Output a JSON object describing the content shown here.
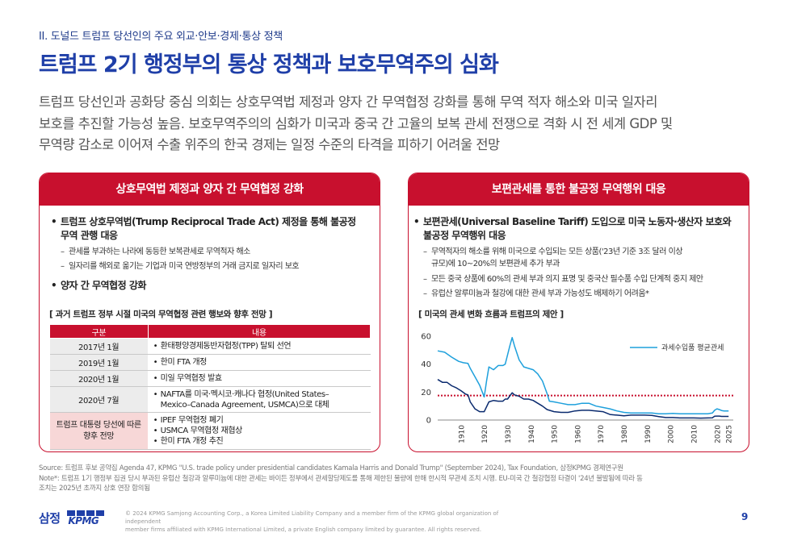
{
  "header": {
    "section": "II. 도널드 트럼프 당선인의 주요 외교·안보·경제·통상 정책",
    "title": "트럼프 2기 행정부의 통상 정책과 보호무역주의 심화"
  },
  "intro": {
    "lines": [
      "트럼프 당선인과 공화당 중심 의회는 상호무역법 제정과 양자 간 무역협정 강화를 통해 무역 적자 해소와 미국 일자리",
      "보호를 추진할 가능성 높음. 보호무역주의의 심화가 미국과 중국 간 고율의 보복 관세 전쟁으로 격화 시 전 세계 GDP 및",
      "무역량 감소로 이어져 수출 위주의 한국 경제는 일정 수준의 타격을 피하기 어려울 전망"
    ]
  },
  "left_panel": {
    "title": "상호무역법 제정과 양자 간 무역협정 강화",
    "bullet1": {
      "lines": [
        "트럼프 상호무역법(Trump Reciprocal Trade Act) 제정을 통해 불공정",
        "무역 관행 대응"
      ],
      "subs": [
        "관세를 부과하는 나라에 동등한 보복관세로 무역적자 해소",
        "일자리를 해외로 옮기는 기업과 미국 연방정부의 거래 금지로 일자리 보호"
      ]
    },
    "bullet2": "양자 간 무역협정 강화",
    "table_title": "[ 과거 트럼프 정부 시절 미국의 무역협정 관련 행보와 향후 전망 ]",
    "table_headers": [
      "구분",
      "내용"
    ],
    "rows": [
      {
        "year": "2017년 1월",
        "items": [
          "환태평양경제동반자협정(TPP) 탈퇴 선언"
        ]
      },
      {
        "year": "2019년 1월",
        "items": [
          "한미 FTA 개정"
        ]
      },
      {
        "year": "2020년 1월",
        "items": [
          "미일 무역협정 발효"
        ]
      },
      {
        "year": "2020년 7월",
        "items": [
          "NAFTA를 미국·멕시코·캐나다 협정(United States–",
          "Mexico–Canada Agreement, USMCA)으로 대체"
        ]
      }
    ],
    "future_row": {
      "year_lines": [
        "트럼프 대통령 당선에 따른",
        "향후 전망"
      ],
      "items": [
        "IPEF 무역협정 폐기",
        "USMCA 무역협정 재협상",
        "한미 FTA 개정 추진"
      ]
    }
  },
  "right_panel": {
    "title": "보편관세를 통한 불공정 무역행위 대응",
    "bullet1": {
      "lines": [
        "보편관세(Universal Baseline Tariff) 도입으로 미국 노동자·생산자 보호와",
        "불공정 무역행위 대응"
      ],
      "subs": [
        [
          "무역적자의 해소를 위해 미국으로 수입되는 모든 상품('23년 기준 3조 달러 이상",
          "규모)에 10~20%의 보편관세 추가 부과"
        ],
        [
          "모든 중국 상품에 60%의 관세 부과 의지 표명 및 중국산 필수품 수입 단계적 중지 제안"
        ],
        [
          "유럽산 알루미늄과 철강에 대한 관세 부과 가능성도 배제하기 어려움*"
        ]
      ]
    },
    "chart_title": "[ 미국의 관세 변화 흐름과 트럼프의 제안 ]"
  },
  "chart_data": {
    "type": "line",
    "title": "",
    "xlabel": "",
    "ylabel": "",
    "xlim": [
      1900,
      2027
    ],
    "ylim": [
      0,
      60
    ],
    "x_ticks": [
      1910,
      1920,
      1930,
      1940,
      1950,
      1960,
      1970,
      1980,
      1990,
      2000,
      2010,
      2020,
      2025
    ],
    "y_ticks": [
      0,
      20,
      40,
      60
    ],
    "legend": "top-right",
    "reference_line": {
      "y": 17.5,
      "color": "#c8102e",
      "style": "dotted"
    },
    "series": [
      {
        "name": "과세수입품 평균관세",
        "color": "#1ea0dc",
        "points": [
          [
            1900,
            49.5
          ],
          [
            1903,
            48.5
          ],
          [
            1906,
            45
          ],
          [
            1909,
            42
          ],
          [
            1911,
            41
          ],
          [
            1913,
            40.5
          ],
          [
            1914,
            37
          ],
          [
            1916,
            31
          ],
          [
            1918,
            25
          ],
          [
            1920,
            16.5
          ],
          [
            1921,
            28
          ],
          [
            1922,
            38
          ],
          [
            1924,
            36
          ],
          [
            1926,
            39
          ],
          [
            1928,
            39
          ],
          [
            1929,
            40
          ],
          [
            1931,
            53
          ],
          [
            1932,
            59
          ],
          [
            1933,
            53
          ],
          [
            1935,
            43
          ],
          [
            1937,
            38
          ],
          [
            1939,
            37
          ],
          [
            1941,
            36
          ],
          [
            1943,
            33
          ],
          [
            1945,
            28
          ],
          [
            1947,
            19
          ],
          [
            1948,
            13.5
          ],
          [
            1950,
            13
          ],
          [
            1953,
            12
          ],
          [
            1956,
            11
          ],
          [
            1959,
            11
          ],
          [
            1962,
            12
          ],
          [
            1965,
            12
          ],
          [
            1968,
            10
          ],
          [
            1971,
            9
          ],
          [
            1974,
            8
          ],
          [
            1977,
            6.5
          ],
          [
            1980,
            5.5
          ],
          [
            1983,
            5
          ],
          [
            1986,
            5
          ],
          [
            1989,
            5
          ],
          [
            1992,
            5
          ],
          [
            1995,
            4.5
          ],
          [
            1998,
            4.5
          ],
          [
            2001,
            4.8
          ],
          [
            2004,
            4.5
          ],
          [
            2007,
            4.5
          ],
          [
            2010,
            4.5
          ],
          [
            2013,
            4.5
          ],
          [
            2016,
            4.5
          ],
          [
            2018,
            5
          ],
          [
            2019,
            7
          ],
          [
            2020,
            8
          ],
          [
            2021,
            7.5
          ],
          [
            2022,
            6.8
          ],
          [
            2023,
            6.5
          ],
          [
            2025,
            6.5
          ]
        ]
      },
      {
        "name": "",
        "color": "#0a2a6e",
        "points": [
          [
            1900,
            29
          ],
          [
            1902,
            27
          ],
          [
            1904,
            27
          ],
          [
            1906,
            24.5
          ],
          [
            1908,
            23
          ],
          [
            1910,
            21
          ],
          [
            1912,
            18.5
          ],
          [
            1913,
            18
          ],
          [
            1914,
            13
          ],
          [
            1916,
            8
          ],
          [
            1918,
            6
          ],
          [
            1920,
            6
          ],
          [
            1922,
            13
          ],
          [
            1924,
            14
          ],
          [
            1926,
            13.5
          ],
          [
            1928,
            13.5
          ],
          [
            1929,
            15
          ],
          [
            1930,
            15
          ],
          [
            1932,
            19.5
          ],
          [
            1933,
            18
          ],
          [
            1935,
            17
          ],
          [
            1937,
            15
          ],
          [
            1939,
            15
          ],
          [
            1941,
            14
          ],
          [
            1943,
            12
          ],
          [
            1945,
            10
          ],
          [
            1947,
            7.5
          ],
          [
            1950,
            6
          ],
          [
            1953,
            5.5
          ],
          [
            1956,
            5.5
          ],
          [
            1959,
            6.5
          ],
          [
            1962,
            7
          ],
          [
            1965,
            7
          ],
          [
            1968,
            6.5
          ],
          [
            1971,
            6
          ],
          [
            1974,
            4
          ],
          [
            1977,
            3.5
          ],
          [
            1980,
            3
          ],
          [
            1983,
            3.5
          ],
          [
            1986,
            3.5
          ],
          [
            1989,
            3.5
          ],
          [
            1992,
            3.3
          ],
          [
            1995,
            2.5
          ],
          [
            1998,
            1.8
          ],
          [
            2001,
            1.8
          ],
          [
            2004,
            1.5
          ],
          [
            2007,
            1.5
          ],
          [
            2010,
            1.5
          ],
          [
            2013,
            1.4
          ],
          [
            2016,
            1.5
          ],
          [
            2018,
            1.6
          ],
          [
            2019,
            2.7
          ],
          [
            2020,
            2.8
          ],
          [
            2021,
            2.8
          ],
          [
            2022,
            2.6
          ],
          [
            2023,
            2.6
          ],
          [
            2025,
            2.6
          ]
        ]
      }
    ]
  },
  "source_notes": {
    "source": "Source: 트럼프 후보 공약집 Agenda 47, KPMG \"U.S. trade policy under presidential candidates Kamala Harris and Donald Trump\" (September 2024), Tax Foundation, 삼정KPMG 경제연구원",
    "note_lines": [
      "Note*: 트럼프 1기 행정부 집권 당시 부과된 유럽산 철강과 알루미늄에 대한 관세는 바이든 정부에서 관세할당제도를 통해 제한된 물량에 한해 한시적 무관세 조치 시행. EU-미국 간 철강협정 타결이 '24년 불발됨에 따라 동",
      "조치는 2025년 초까지 상호 연장 합의됨"
    ]
  },
  "footer": {
    "logo_ko": "삼정",
    "logo_en": "KPMG",
    "copyright_lines": [
      "© 2024 KPMG Samjong Accounting Corp., a Korea Limited Liability Company and a member firm of the KPMG global organization of independent",
      "member firms affiliated with KPMG International Limited, a private English company limited by guarantee. All rights reserved."
    ],
    "page": "9"
  },
  "colors": {
    "accent_red": "#c8102e",
    "title_blue": "#1f3fa8",
    "line_light": "#1ea0dc",
    "line_dark": "#0a2a6e"
  }
}
